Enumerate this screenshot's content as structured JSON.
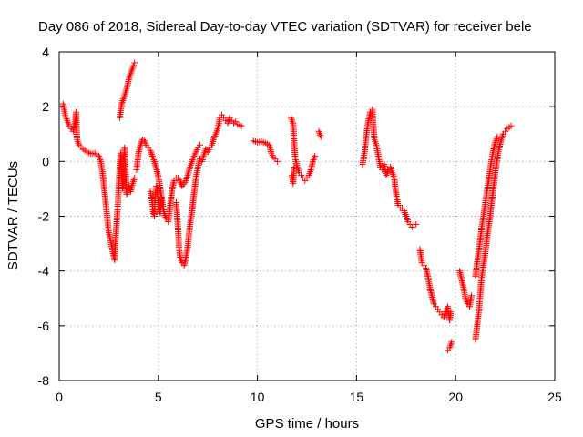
{
  "chart_data": {
    "type": "scatter",
    "title": "Day 086 of 2018, Sidereal Day-to-day VTEC variation (SDTVAR) for receiver bele",
    "xlabel": "GPS time / hours",
    "ylabel": "SDTVAR / TECUs",
    "xlim": [
      0,
      25
    ],
    "ylim": [
      -8,
      4
    ],
    "xticks": [
      0,
      5,
      10,
      15,
      20,
      25
    ],
    "yticks": [
      -8,
      -6,
      -4,
      -2,
      0,
      2,
      4
    ],
    "xtick_labels": [
      "0",
      "5",
      "10",
      "15",
      "20",
      "25"
    ],
    "ytick_labels": [
      "-8",
      "-6",
      "-4",
      "-2",
      "0",
      "2",
      "4"
    ],
    "grid": true,
    "marker": "+",
    "color": "#ff0000",
    "series": [
      {
        "name": "bele",
        "segments": [
          [
            [
              0.2,
              2.1
            ],
            [
              0.3,
              1.7
            ],
            [
              0.4,
              1.5
            ],
            [
              0.5,
              1.3
            ],
            [
              0.6,
              1.2
            ],
            [
              0.7,
              1.1
            ],
            [
              0.8,
              1.4
            ],
            [
              0.85,
              1.8
            ],
            [
              0.9,
              0.8
            ],
            [
              1.0,
              0.6
            ],
            [
              1.2,
              0.45
            ],
            [
              1.4,
              0.35
            ],
            [
              1.6,
              0.28
            ],
            [
              1.8,
              0.3
            ],
            [
              2.0,
              0.2
            ],
            [
              2.1,
              0.0
            ],
            [
              2.2,
              -0.5
            ],
            [
              2.3,
              -1.2
            ],
            [
              2.4,
              -1.9
            ],
            [
              2.5,
              -2.6
            ],
            [
              2.6,
              -2.9
            ],
            [
              2.7,
              -3.3
            ],
            [
              2.8,
              -3.6
            ],
            [
              2.85,
              -2.7
            ],
            [
              2.9,
              -2.2
            ],
            [
              2.95,
              -1.7
            ],
            [
              3.0,
              -1.0
            ],
            [
              3.05,
              -0.2
            ],
            [
              3.1,
              0.3
            ],
            [
              3.15,
              -0.5
            ],
            [
              3.2,
              -1.0
            ],
            [
              3.25,
              -0.3
            ],
            [
              3.3,
              0.5
            ],
            [
              3.4,
              -1.2
            ],
            [
              3.5,
              -0.9
            ],
            [
              3.6,
              -1.1
            ],
            [
              3.7,
              -0.8
            ],
            [
              3.8,
              -0.6
            ]
          ],
          [
            [
              3.05,
              1.6
            ],
            [
              3.15,
              2.1
            ],
            [
              3.3,
              2.4
            ],
            [
              3.45,
              2.8
            ],
            [
              3.55,
              3.1
            ],
            [
              3.65,
              3.3
            ],
            [
              3.75,
              3.5
            ],
            [
              3.8,
              3.6
            ]
          ],
          [
            [
              3.9,
              -0.3
            ],
            [
              4.0,
              0.3
            ],
            [
              4.1,
              0.6
            ],
            [
              4.2,
              0.8
            ],
            [
              4.3,
              0.75
            ],
            [
              4.4,
              0.6
            ],
            [
              4.5,
              0.5
            ],
            [
              4.6,
              0.4
            ],
            [
              4.7,
              0.2
            ],
            [
              4.8,
              0.0
            ],
            [
              4.9,
              -0.25
            ],
            [
              5.0,
              -0.55
            ],
            [
              5.1,
              -1.0
            ],
            [
              5.2,
              -1.5
            ],
            [
              5.3,
              -1.9
            ],
            [
              5.4,
              -2.1
            ],
            [
              5.5,
              -2.2
            ],
            [
              5.6,
              -1.6
            ],
            [
              5.7,
              -1.0
            ],
            [
              5.8,
              -0.7
            ],
            [
              5.9,
              -0.6
            ]
          ],
          [
            [
              4.6,
              -1.1
            ],
            [
              4.7,
              -1.5
            ],
            [
              4.75,
              -1.9
            ],
            [
              4.8,
              -2.0
            ],
            [
              4.85,
              -1.2
            ],
            [
              4.9,
              -0.9
            ],
            [
              5.0,
              -1.5
            ],
            [
              5.1,
              -1.9
            ],
            [
              5.15,
              -1.3
            ]
          ],
          [
            [
              5.9,
              -1.5
            ],
            [
              6.0,
              -2.5
            ],
            [
              6.05,
              -3.2
            ],
            [
              6.1,
              -3.5
            ],
            [
              6.2,
              -3.7
            ],
            [
              6.3,
              -3.8
            ],
            [
              6.4,
              -3.5
            ],
            [
              6.5,
              -3.0
            ],
            [
              6.6,
              -2.3
            ],
            [
              6.7,
              -1.8
            ],
            [
              6.8,
              -1.2
            ],
            [
              6.9,
              -0.6
            ],
            [
              7.0,
              -0.2
            ],
            [
              7.1,
              0.1
            ],
            [
              7.2,
              0.0
            ],
            [
              7.3,
              0.25
            ],
            [
              7.4,
              0.45
            ],
            [
              7.5,
              0.35
            ],
            [
              7.6,
              0.5
            ],
            [
              7.7,
              0.6
            ],
            [
              7.8,
              0.85
            ],
            [
              7.9,
              1.0
            ],
            [
              8.0,
              1.2
            ],
            [
              8.1,
              1.6
            ],
            [
              8.2,
              1.7
            ],
            [
              8.3,
              1.6
            ],
            [
              8.4,
              1.5
            ],
            [
              8.5,
              1.4
            ],
            [
              8.6,
              1.6
            ],
            [
              8.7,
              1.5
            ],
            [
              8.8,
              1.4
            ],
            [
              8.9,
              1.45
            ],
            [
              9.0,
              1.35
            ],
            [
              9.2,
              1.3
            ]
          ],
          [
            [
              6.0,
              -0.6
            ],
            [
              6.2,
              -0.9
            ],
            [
              6.4,
              -0.7
            ],
            [
              6.6,
              -0.2
            ],
            [
              6.8,
              0.2
            ],
            [
              6.9,
              0.35
            ],
            [
              7.0,
              0.5
            ],
            [
              7.1,
              0.6
            ]
          ],
          [
            [
              9.8,
              0.75
            ],
            [
              10.0,
              0.7
            ],
            [
              10.2,
              0.72
            ],
            [
              10.4,
              0.68
            ],
            [
              10.6,
              0.6
            ],
            [
              10.7,
              0.3
            ],
            [
              10.8,
              0.15
            ],
            [
              10.9,
              0.1
            ],
            [
              11.0,
              0.0
            ]
          ],
          [
            [
              11.7,
              1.6
            ],
            [
              11.8,
              1.4
            ],
            [
              11.85,
              0.7
            ],
            [
              11.9,
              0.2
            ],
            [
              11.95,
              0.0
            ],
            [
              12.0,
              -0.2
            ],
            [
              12.1,
              -0.4
            ],
            [
              12.2,
              -0.5
            ],
            [
              12.3,
              -0.6
            ],
            [
              12.4,
              -0.7
            ],
            [
              12.5,
              -0.6
            ],
            [
              12.6,
              -0.5
            ],
            [
              12.7,
              -0.3
            ],
            [
              12.8,
              0.0
            ],
            [
              12.9,
              0.2
            ]
          ],
          [
            [
              11.75,
              -0.5
            ],
            [
              11.8,
              -0.8
            ],
            [
              11.85,
              -0.2
            ]
          ],
          [
            [
              13.1,
              1.1
            ],
            [
              13.2,
              0.9
            ]
          ],
          [
            [
              15.3,
              -0.1
            ],
            [
              15.4,
              0.3
            ],
            [
              15.5,
              1.0
            ],
            [
              15.6,
              1.5
            ],
            [
              15.7,
              1.8
            ],
            [
              15.8,
              1.9
            ],
            [
              15.85,
              1.3
            ],
            [
              15.9,
              0.8
            ],
            [
              16.0,
              0.6
            ],
            [
              16.1,
              0.2
            ],
            [
              16.2,
              -0.2
            ],
            [
              16.3,
              -0.3
            ],
            [
              16.4,
              -0.1
            ],
            [
              16.5,
              -0.5
            ],
            [
              16.6,
              -0.3
            ],
            [
              16.7,
              -0.2
            ],
            [
              16.8,
              -0.4
            ],
            [
              16.9,
              -0.6
            ],
            [
              17.0,
              -1.2
            ],
            [
              17.1,
              -1.6
            ],
            [
              17.2,
              -1.7
            ],
            [
              17.3,
              -1.7
            ],
            [
              17.4,
              -1.8
            ],
            [
              17.5,
              -2.0
            ],
            [
              17.6,
              -2.2
            ],
            [
              17.7,
              -2.3
            ],
            [
              17.8,
              -2.4
            ],
            [
              17.9,
              -2.3
            ],
            [
              18.0,
              -2.3
            ]
          ],
          [
            [
              18.2,
              -3.2
            ],
            [
              18.3,
              -3.7
            ],
            [
              18.4,
              -3.8
            ],
            [
              18.5,
              -3.9
            ],
            [
              18.6,
              -4.2
            ],
            [
              18.7,
              -4.6
            ],
            [
              18.8,
              -4.9
            ],
            [
              18.9,
              -5.2
            ],
            [
              19.0,
              -5.3
            ],
            [
              19.1,
              -5.4
            ],
            [
              19.2,
              -5.5
            ],
            [
              19.3,
              -5.6
            ],
            [
              19.4,
              -5.7
            ],
            [
              19.5,
              -5.5
            ],
            [
              19.6,
              -5.3
            ],
            [
              19.7,
              -5.8
            ],
            [
              19.75,
              -5.5
            ]
          ],
          [
            [
              19.6,
              -6.9
            ],
            [
              19.7,
              -6.8
            ],
            [
              19.8,
              -6.6
            ]
          ],
          [
            [
              20.2,
              -4.0
            ],
            [
              20.3,
              -4.3
            ],
            [
              20.4,
              -4.6
            ],
            [
              20.5,
              -5.0
            ],
            [
              20.6,
              -5.2
            ],
            [
              20.7,
              -5.3
            ],
            [
              20.8,
              -4.9
            ]
          ],
          [
            [
              21.0,
              -6.5
            ],
            [
              21.05,
              -6.2
            ],
            [
              21.1,
              -5.9
            ],
            [
              21.15,
              -5.6
            ],
            [
              21.2,
              -5.2
            ],
            [
              21.25,
              -4.8
            ],
            [
              21.3,
              -4.3
            ],
            [
              21.4,
              -3.8
            ],
            [
              21.5,
              -3.3
            ],
            [
              21.6,
              -2.7
            ],
            [
              21.7,
              -2.2
            ],
            [
              21.8,
              -1.6
            ],
            [
              21.9,
              -1.0
            ],
            [
              22.0,
              -0.4
            ],
            [
              22.1,
              0.1
            ],
            [
              22.2,
              0.5
            ],
            [
              22.3,
              0.8
            ],
            [
              22.4,
              1.0
            ],
            [
              22.5,
              1.1
            ],
            [
              22.6,
              1.2
            ],
            [
              22.7,
              1.25
            ],
            [
              22.8,
              1.3
            ]
          ],
          [
            [
              21.0,
              -4.2
            ],
            [
              21.1,
              -3.6
            ],
            [
              21.2,
              -3.1
            ],
            [
              21.3,
              -2.5
            ],
            [
              21.4,
              -2.0
            ],
            [
              21.5,
              -1.5
            ],
            [
              21.6,
              -1.0
            ],
            [
              21.7,
              -0.5
            ],
            [
              21.8,
              0.0
            ],
            [
              21.9,
              0.4
            ],
            [
              22.0,
              0.7
            ],
            [
              22.1,
              0.9
            ]
          ]
        ]
      }
    ]
  }
}
